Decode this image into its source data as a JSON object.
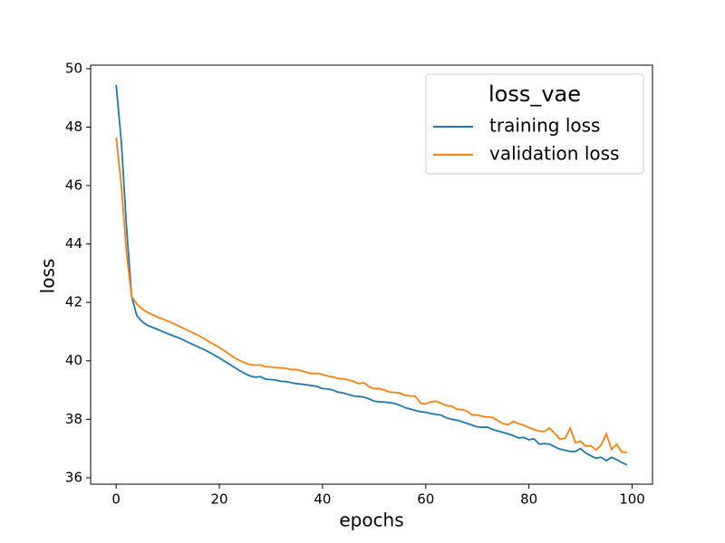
{
  "chart_data": {
    "type": "line",
    "xlabel": "epochs",
    "ylabel": "loss",
    "x": [
      0,
      1,
      2,
      3,
      4,
      5,
      6,
      7,
      8,
      9,
      10,
      11,
      12,
      13,
      14,
      15,
      16,
      17,
      18,
      19,
      20,
      21,
      22,
      23,
      24,
      25,
      26,
      27,
      28,
      29,
      30,
      31,
      32,
      33,
      34,
      35,
      36,
      37,
      38,
      39,
      40,
      41,
      42,
      43,
      44,
      45,
      46,
      47,
      48,
      49,
      50,
      51,
      52,
      53,
      54,
      55,
      56,
      57,
      58,
      59,
      60,
      61,
      62,
      63,
      64,
      65,
      66,
      67,
      68,
      69,
      70,
      71,
      72,
      73,
      74,
      75,
      76,
      77,
      78,
      79,
      80,
      81,
      82,
      83,
      84,
      85,
      86,
      87,
      88,
      89,
      90,
      91,
      92,
      93,
      94,
      95,
      96,
      97,
      98,
      99
    ],
    "series": [
      {
        "name": "training loss",
        "color": "#1f77b4",
        "values": [
          49.45,
          47.5,
          44.6,
          42.2,
          41.55,
          41.35,
          41.22,
          41.15,
          41.08,
          41.0,
          40.93,
          40.86,
          40.8,
          40.72,
          40.63,
          40.55,
          40.47,
          40.39,
          40.3,
          40.2,
          40.1,
          39.99,
          39.88,
          39.77,
          39.66,
          39.56,
          39.48,
          39.44,
          39.46,
          39.37,
          39.36,
          39.34,
          39.3,
          39.29,
          39.25,
          39.22,
          39.2,
          39.18,
          39.15,
          39.12,
          39.05,
          39.04,
          39.0,
          38.93,
          38.9,
          38.85,
          38.8,
          38.78,
          38.76,
          38.7,
          38.62,
          38.6,
          38.59,
          38.57,
          38.54,
          38.48,
          38.4,
          38.35,
          38.3,
          38.26,
          38.24,
          38.2,
          38.17,
          38.14,
          38.05,
          38.0,
          37.97,
          37.92,
          37.86,
          37.8,
          37.74,
          37.73,
          37.73,
          37.65,
          37.6,
          37.55,
          37.5,
          37.44,
          37.36,
          37.38,
          37.3,
          37.33,
          37.15,
          37.17,
          37.15,
          37.06,
          36.98,
          36.94,
          36.9,
          36.9,
          37.0,
          36.85,
          36.75,
          36.67,
          36.7,
          36.58,
          36.7,
          36.62,
          36.52,
          36.44
        ]
      },
      {
        "name": "validation loss",
        "color": "#ff7f0e",
        "values": [
          47.65,
          46.0,
          43.7,
          42.2,
          41.95,
          41.78,
          41.67,
          41.58,
          41.5,
          41.43,
          41.36,
          41.29,
          41.2,
          41.12,
          41.03,
          40.95,
          40.86,
          40.77,
          40.66,
          40.56,
          40.46,
          40.34,
          40.22,
          40.1,
          40.01,
          39.93,
          39.87,
          39.85,
          39.86,
          39.8,
          39.79,
          39.77,
          39.76,
          39.74,
          39.7,
          39.7,
          39.66,
          39.6,
          39.57,
          39.57,
          39.53,
          39.48,
          39.45,
          39.4,
          39.38,
          39.35,
          39.3,
          39.22,
          39.25,
          39.12,
          39.05,
          39.05,
          39.0,
          38.93,
          38.92,
          38.9,
          38.82,
          38.8,
          38.79,
          38.55,
          38.53,
          38.6,
          38.62,
          38.55,
          38.47,
          38.45,
          38.35,
          38.33,
          38.28,
          38.15,
          38.15,
          38.1,
          38.08,
          38.06,
          37.95,
          37.85,
          37.82,
          37.93,
          37.85,
          37.8,
          37.72,
          37.65,
          37.6,
          37.58,
          37.7,
          37.52,
          37.32,
          37.35,
          37.7,
          37.2,
          37.25,
          37.08,
          37.1,
          36.95,
          37.12,
          37.5,
          36.97,
          37.15,
          36.88,
          36.87
        ]
      }
    ],
    "xlim": [
      -4.95,
      103.95
    ],
    "xticks": [
      0,
      20,
      40,
      60,
      80,
      100
    ],
    "ylim": [
      35.78,
      50.12
    ],
    "yticks": [
      36,
      38,
      40,
      42,
      44,
      46,
      48,
      50
    ],
    "grid": false,
    "legend": {
      "title": "loss_vae",
      "loc": "upper right"
    }
  }
}
